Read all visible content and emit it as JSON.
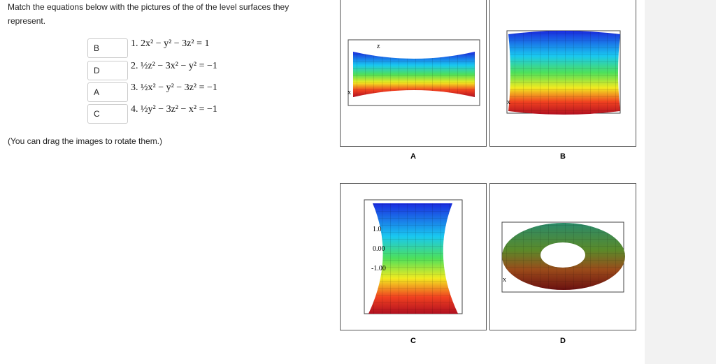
{
  "instructions": {
    "line1": "Match the equations below with the pictures of the of the level surfaces they",
    "line2": "represent."
  },
  "answers": [
    "B",
    "D",
    "A",
    "C"
  ],
  "equations": [
    "1. 2x² − y² − 3z² = 1",
    "2. ½z² − 3x² − y² = −1",
    "3. ½x² − y² − 3z² = −1",
    "4. ½y² − 3z² − x² = −1"
  ],
  "note": "(You can drag the images to rotate them.)",
  "images": [
    {
      "label": "A",
      "axis_labels": [
        "z",
        "x"
      ]
    },
    {
      "label": "B",
      "axis_labels": [
        "x"
      ]
    },
    {
      "label": "C",
      "axis_labels": [
        "1.0",
        "0.00",
        "-1.00"
      ]
    },
    {
      "label": "D",
      "axis_labels": [
        "x"
      ]
    }
  ]
}
